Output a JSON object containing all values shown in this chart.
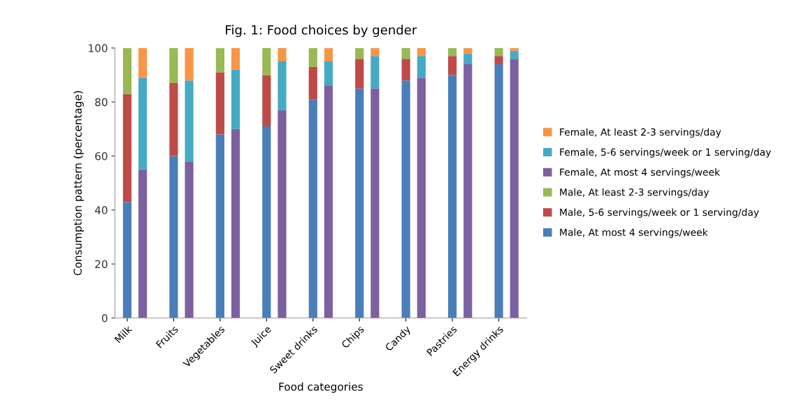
{
  "chart_data": {
    "type": "bar",
    "title": "Fig. 1: Food choices by gender",
    "xlabel": "Food categories",
    "ylabel": "Consumption pattern (percentage)",
    "categories": [
      "Milk",
      null,
      "Fruits",
      null,
      "Vegetables",
      null,
      "Juice",
      null,
      "Sweet drinks",
      null,
      "Chips",
      null,
      "Candy",
      null,
      "Pastries",
      null,
      "Energy drinks",
      null
    ],
    "stacked": true,
    "ylim": [
      0,
      100
    ],
    "yticks": [
      0,
      20,
      40,
      60,
      80,
      100
    ],
    "grid": false,
    "legend": "right",
    "series": [
      {
        "name": "Male, At most 4 servings/week",
        "color": "#4a7ebb",
        "values": [
          43,
          null,
          60,
          null,
          68,
          null,
          71,
          null,
          81,
          null,
          85,
          null,
          88,
          null,
          90,
          null,
          94,
          null
        ]
      },
      {
        "name": "Male, 5-6 servings/week or 1 serving/day",
        "color": "#be4b48",
        "values": [
          40,
          null,
          27,
          null,
          23,
          null,
          19,
          null,
          12,
          null,
          11,
          null,
          8,
          null,
          7,
          null,
          3,
          null
        ]
      },
      {
        "name": "Male, At least 2-3 servings/day",
        "color": "#98b954",
        "values": [
          17,
          null,
          13,
          null,
          9,
          null,
          10,
          null,
          7,
          null,
          4,
          null,
          4,
          null,
          3,
          null,
          3,
          null
        ]
      },
      {
        "name": "Female, At most 4 servings/week",
        "color": "#7d60a0",
        "values": [
          null,
          55,
          null,
          58,
          null,
          70,
          null,
          77,
          null,
          86,
          null,
          85,
          null,
          89,
          null,
          94,
          null,
          96
        ]
      },
      {
        "name": "Female, 5-6 servings/week or 1 serving/day",
        "color": "#46aac5",
        "values": [
          null,
          34,
          null,
          30,
          null,
          22,
          null,
          18,
          null,
          9,
          null,
          12,
          null,
          8,
          null,
          4,
          null,
          3
        ]
      },
      {
        "name": "Female, At least 2-3 servings/day",
        "color": "#f79646",
        "values": [
          null,
          11,
          null,
          12,
          null,
          8,
          null,
          5,
          null,
          5,
          null,
          3,
          null,
          3,
          null,
          2,
          null,
          1
        ]
      }
    ]
  }
}
